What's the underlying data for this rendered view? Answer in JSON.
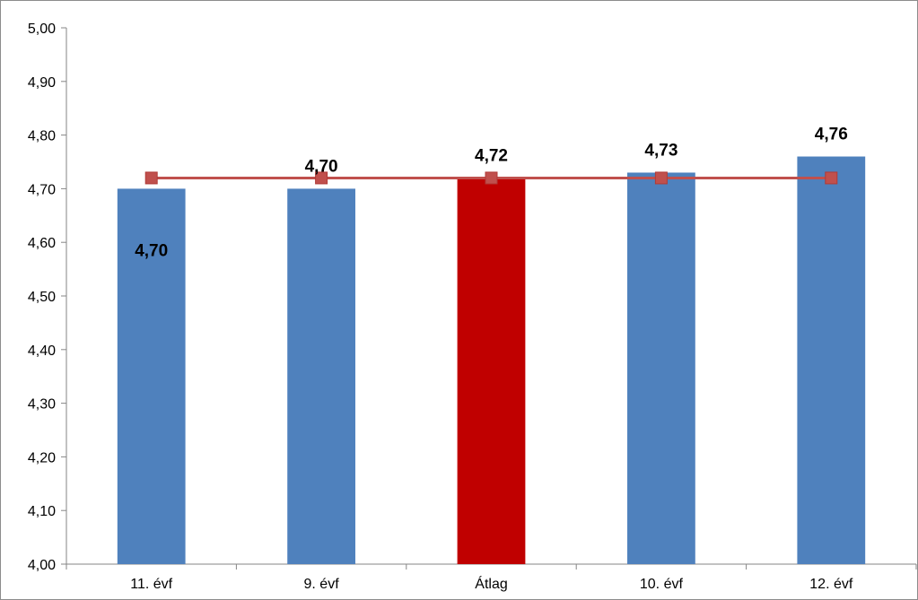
{
  "chart_data": {
    "type": "bar",
    "categories": [
      "11. évf",
      "9. évf",
      "Átlag",
      "10. évf",
      "12. évf"
    ],
    "series": [
      {
        "type": "bar",
        "values": [
          4.7,
          4.7,
          4.72,
          4.73,
          4.76
        ],
        "data_labels": [
          "4,70",
          "4,70",
          "4,72",
          "4,73",
          "4,76"
        ],
        "colors": [
          "#4f81bd",
          "#4f81bd",
          "#c00000",
          "#4f81bd",
          "#4f81bd"
        ]
      },
      {
        "type": "line",
        "values": [
          4.72,
          4.72,
          4.72,
          4.72,
          4.72
        ],
        "color": "#c0504d",
        "marker": "square"
      }
    ],
    "ylim": [
      4.0,
      5.0
    ],
    "yticks": [
      "4,00",
      "4,10",
      "4,20",
      "4,30",
      "4,40",
      "4,50",
      "4,60",
      "4,70",
      "4,80",
      "4,90",
      "5,00"
    ],
    "title": "",
    "xlabel": "",
    "ylabel": "",
    "grid": false,
    "legend": "none"
  }
}
